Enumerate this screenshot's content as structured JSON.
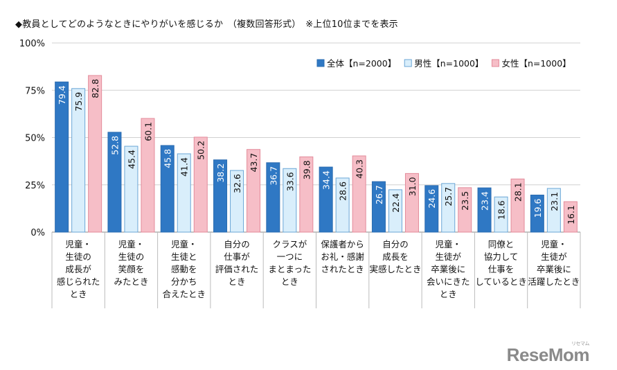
{
  "title": "◆教員としてどのようなときにやりがいを感じるか　（複数回答形式）　※上位10位までを表示",
  "watermark": "ReseMom",
  "watermark_sub": "リセマム",
  "colors": {
    "overall": "#2f78c4",
    "male": "#d9eefb",
    "female": "#f6bec7",
    "grid": "#d0d0d0",
    "axis": "#888888",
    "value_text": "#ffffff",
    "label_text": "#111111"
  },
  "chart_data": {
    "type": "bar",
    "title": "教員としてどのようなときにやりがいを感じるか（複数回答形式）※上位10位までを表示",
    "xlabel": "",
    "ylabel": "",
    "ylim": [
      0,
      100
    ],
    "yticks": [
      "0%",
      "25%",
      "50%",
      "75%",
      "100%"
    ],
    "ytick_values": [
      0,
      25,
      50,
      75,
      100
    ],
    "legend_position": "top-right",
    "categories": [
      [
        "児童・",
        "生徒の",
        "成長が",
        "感じられた",
        "とき"
      ],
      [
        "児童・",
        "生徒の",
        "笑顔を",
        "みたとき"
      ],
      [
        "児童・",
        "生徒と",
        "感動を",
        "分かち",
        "合えたとき"
      ],
      [
        "自分の",
        "仕事が",
        "評価された",
        "とき"
      ],
      [
        "クラスが",
        "一つに",
        "まとまった",
        "とき"
      ],
      [
        "保護者から",
        "お礼・感謝",
        "されたとき"
      ],
      [
        "自分の",
        "成長を",
        "実感したとき"
      ],
      [
        "児童・",
        "生徒が",
        "卒業後に",
        "会いにきた",
        "とき"
      ],
      [
        "同僚と",
        "協力して",
        "仕事を",
        "しているとき"
      ],
      [
        "児童・",
        "生徒が",
        "卒業後に",
        "活躍したとき"
      ]
    ],
    "series": [
      {
        "name": "全体【n=2000】",
        "values": [
          79.4,
          52.8,
          45.8,
          38.2,
          36.7,
          34.4,
          26.7,
          24.6,
          23.4,
          19.6
        ],
        "labels": [
          "79.4",
          "52.8",
          "45.8",
          "38.2",
          "36.7",
          "34.4",
          "26.7",
          "24.6",
          "23.4",
          "19.6"
        ]
      },
      {
        "name": "男性【n=1000】",
        "values": [
          75.9,
          45.4,
          41.4,
          32.6,
          33.6,
          28.6,
          22.4,
          25.7,
          18.6,
          23.1
        ],
        "labels": [
          "75.9",
          "45.4",
          "41.4",
          "32.6",
          "33.6",
          "28.6",
          "22.4",
          "25.7",
          "18.6",
          "23.1"
        ]
      },
      {
        "name": "女性【n=1000】",
        "values": [
          82.8,
          60.1,
          50.2,
          43.7,
          39.8,
          40.3,
          31.0,
          23.5,
          28.1,
          16.1
        ],
        "labels": [
          "82.8",
          "60.1",
          "50.2",
          "43.7",
          "39.8",
          "40.3",
          "31.0",
          "23.5",
          "28.1",
          "16.1"
        ]
      }
    ]
  }
}
